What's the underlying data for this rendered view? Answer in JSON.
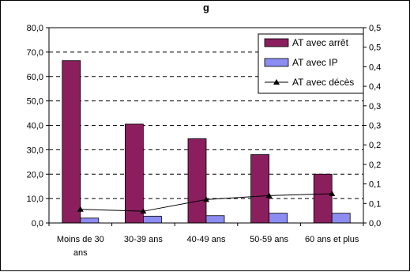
{
  "chart_data": {
    "type": "bar",
    "title": "g",
    "categories": [
      "Moins de 30 ans",
      "30-39 ans",
      "40-49 ans",
      "50-59 ans",
      "60 ans et plus"
    ],
    "category_lines": [
      [
        "Moins de 30",
        "ans"
      ],
      [
        "30-39 ans"
      ],
      [
        "40-49 ans"
      ],
      [
        "50-59 ans"
      ],
      [
        "60 ans et plus"
      ]
    ],
    "series": [
      {
        "name": "AT avec arrêt",
        "type": "bar",
        "axis": "left",
        "color": "#8b1f5e",
        "values": [
          66.5,
          40.5,
          34.5,
          28.0,
          20.0
        ]
      },
      {
        "name": "AT avec IP",
        "type": "bar",
        "axis": "left",
        "color": "#8c8cf2",
        "values": [
          2.0,
          2.8,
          3.0,
          4.0,
          4.0
        ]
      },
      {
        "name": "AT avec décès",
        "type": "line",
        "axis": "right",
        "color": "#000000",
        "marker": "triangle",
        "values": [
          0.035,
          0.03,
          0.06,
          0.07,
          0.075
        ]
      }
    ],
    "y_left": {
      "min": 0,
      "max": 80,
      "step": 10,
      "tick_labels": [
        "0,0",
        "10,0",
        "20,0",
        "30,0",
        "40,0",
        "50,0",
        "60,0",
        "70,0",
        "80,0"
      ]
    },
    "y_right": {
      "min": 0,
      "max": 0.5,
      "step": 0.05,
      "tick_labels": [
        "0,0",
        "0,1",
        "0,1",
        "0,2",
        "0,2",
        "0,3",
        "0,3",
        "0,4",
        "0,4",
        "0,5",
        "0,5"
      ]
    },
    "grid": true,
    "legend_position": "top-right"
  }
}
